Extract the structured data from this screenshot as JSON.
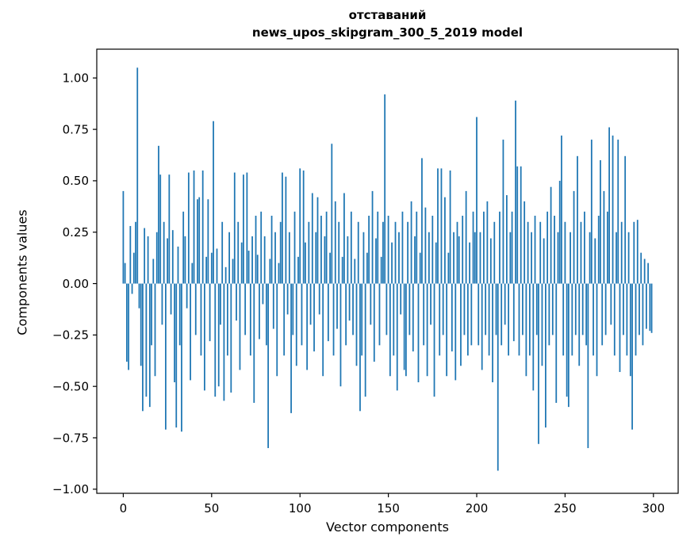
{
  "title": {
    "line1": "отставаний",
    "line2": "news_upos_skipgram_300_5_2019 model"
  },
  "chart_data": {
    "type": "bar",
    "title": "отставаний\nnews_upos_skipgram_300_5_2019 model",
    "xlabel": "Vector components",
    "ylabel": "Components values",
    "bar_color": "#1f77b4",
    "xlim": [
      -15,
      314
    ],
    "ylim": [
      -1.02,
      1.14
    ],
    "x_tick_values": [
      0,
      50,
      100,
      150,
      200,
      250,
      300
    ],
    "x_tick_labels": [
      "0",
      "50",
      "100",
      "150",
      "200",
      "250",
      "300"
    ],
    "y_tick_values": [
      -1.0,
      -0.75,
      -0.5,
      -0.25,
      0.0,
      0.25,
      0.5,
      0.75,
      1.0
    ],
    "y_tick_labels": [
      "−1.00",
      "−0.75",
      "−0.50",
      "−0.25",
      "0.00",
      "0.25",
      "0.50",
      "0.75",
      "1.00"
    ],
    "grid": false,
    "legend": null,
    "values": [
      0.45,
      0.1,
      -0.38,
      -0.42,
      0.28,
      -0.05,
      0.15,
      0.3,
      1.05,
      -0.12,
      -0.4,
      -0.62,
      0.27,
      -0.55,
      0.23,
      -0.6,
      -0.3,
      0.12,
      -0.45,
      0.25,
      0.67,
      0.53,
      -0.2,
      0.3,
      -0.71,
      0.22,
      0.53,
      -0.15,
      0.26,
      -0.48,
      -0.7,
      0.18,
      -0.3,
      -0.72,
      0.35,
      0.23,
      -0.12,
      0.54,
      -0.47,
      0.1,
      0.55,
      -0.25,
      0.41,
      0.42,
      -0.35,
      0.55,
      -0.52,
      0.13,
      0.41,
      -0.28,
      0.15,
      0.79,
      -0.55,
      0.17,
      -0.5,
      -0.2,
      0.3,
      -0.57,
      0.08,
      -0.35,
      0.25,
      -0.53,
      0.12,
      0.54,
      -0.18,
      0.3,
      -0.42,
      0.2,
      0.53,
      -0.25,
      0.54,
      0.16,
      -0.35,
      0.23,
      -0.58,
      0.33,
      0.14,
      -0.27,
      0.35,
      -0.1,
      0.23,
      -0.3,
      -0.8,
      0.12,
      0.33,
      -0.22,
      0.25,
      -0.45,
      0.1,
      0.3,
      0.54,
      -0.35,
      0.52,
      -0.15,
      0.25,
      -0.63,
      -0.25,
      0.35,
      -0.4,
      0.13,
      0.56,
      -0.3,
      0.55,
      0.2,
      -0.42,
      0.3,
      -0.2,
      0.44,
      -0.33,
      0.25,
      0.42,
      -0.15,
      0.33,
      -0.45,
      0.23,
      0.35,
      -0.28,
      0.15,
      0.68,
      -0.35,
      0.4,
      -0.22,
      0.3,
      -0.5,
      0.13,
      0.44,
      -0.3,
      0.23,
      -0.18,
      0.35,
      -0.25,
      0.12,
      -0.4,
      0.3,
      -0.62,
      -0.35,
      0.25,
      -0.55,
      0.15,
      0.33,
      -0.2,
      0.45,
      -0.38,
      0.22,
      0.35,
      -0.3,
      0.13,
      0.3,
      0.92,
      -0.25,
      0.33,
      -0.45,
      0.2,
      -0.35,
      0.3,
      -0.52,
      0.25,
      -0.15,
      0.35,
      -0.42,
      -0.45,
      0.3,
      -0.25,
      0.4,
      -0.33,
      0.23,
      0.35,
      -0.48,
      0.15,
      0.61,
      -0.3,
      0.37,
      -0.45,
      0.25,
      -0.2,
      0.33,
      -0.55,
      0.2,
      0.56,
      -0.35,
      0.56,
      -0.25,
      0.42,
      -0.45,
      0.15,
      0.55,
      -0.33,
      0.25,
      -0.47,
      0.3,
      0.23,
      -0.4,
      0.33,
      -0.25,
      0.45,
      -0.35,
      0.2,
      -0.3,
      0.35,
      0.25,
      0.81,
      -0.3,
      0.25,
      -0.42,
      0.35,
      -0.25,
      0.4,
      -0.35,
      0.22,
      -0.48,
      0.3,
      -0.25,
      -0.91,
      0.35,
      -0.3,
      0.7,
      -0.2,
      0.43,
      -0.35,
      0.25,
      0.35,
      -0.28,
      0.89,
      0.57,
      -0.35,
      0.57,
      -0.25,
      0.4,
      -0.45,
      0.3,
      -0.35,
      0.25,
      -0.52,
      0.33,
      -0.25,
      -0.78,
      0.3,
      -0.4,
      0.22,
      -0.7,
      0.35,
      -0.3,
      0.47,
      -0.25,
      0.33,
      -0.58,
      0.25,
      0.5,
      0.72,
      -0.35,
      0.3,
      -0.55,
      -0.6,
      0.25,
      -0.35,
      0.45,
      -0.25,
      0.62,
      -0.4,
      0.3,
      -0.25,
      0.35,
      -0.3,
      -0.8,
      0.25,
      0.7,
      -0.35,
      0.22,
      -0.45,
      0.33,
      0.6,
      -0.3,
      0.45,
      -0.25,
      0.35,
      0.76,
      -0.2,
      0.72,
      -0.35,
      0.25,
      0.7,
      -0.43,
      0.3,
      -0.25,
      0.62,
      -0.35,
      0.25,
      -0.45,
      -0.71,
      0.3,
      -0.35,
      0.31,
      -0.25,
      0.15,
      -0.3,
      0.12,
      -0.22,
      0.1,
      -0.23,
      -0.24
    ]
  }
}
